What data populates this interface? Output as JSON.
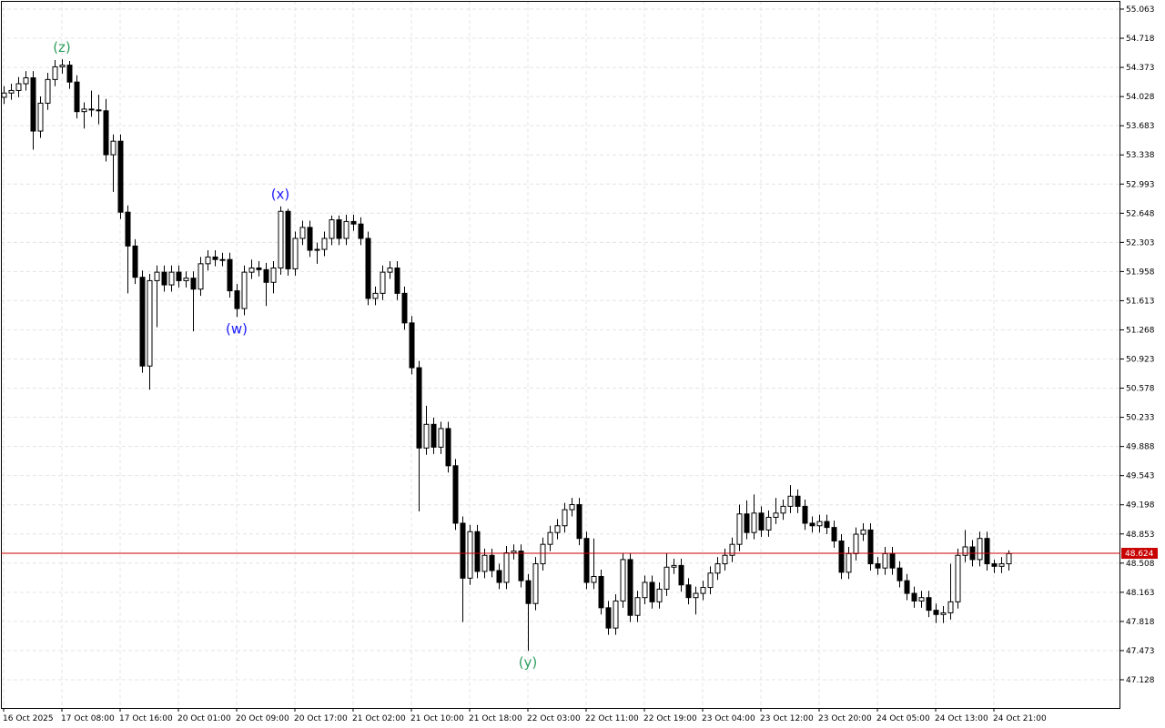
{
  "chart_data": {
    "type": "candlestick",
    "categories": [
      "16 Oct 2025",
      null,
      null,
      null,
      null,
      null,
      null,
      null,
      "17 Oct 08:00",
      null,
      null,
      null,
      null,
      null,
      null,
      null,
      "17 Oct 16:00",
      null,
      null,
      null,
      null,
      null,
      null,
      null,
      "20 Oct 01:00",
      null,
      null,
      null,
      null,
      null,
      null,
      null,
      "20 Oct 09:00",
      null,
      null,
      null,
      null,
      null,
      null,
      null,
      "20 Oct 17:00",
      null,
      null,
      null,
      null,
      null,
      null,
      null,
      "21 Oct 02:00",
      null,
      null,
      null,
      null,
      null,
      null,
      null,
      "21 Oct 10:00",
      null,
      null,
      null,
      null,
      null,
      null,
      null,
      "21 Oct 18:00",
      null,
      null,
      null,
      null,
      null,
      null,
      null,
      "22 Oct 03:00",
      null,
      null,
      null,
      null,
      null,
      null,
      null,
      "22 Oct 11:00",
      null,
      null,
      null,
      null,
      null,
      null,
      null,
      "22 Oct 19:00",
      null,
      null,
      null,
      null,
      null,
      null,
      null,
      "23 Oct 04:00",
      null,
      null,
      null,
      null,
      null,
      null,
      null,
      "23 Oct 12:00",
      null,
      null,
      null,
      null,
      null,
      null,
      null,
      "23 Oct 20:00",
      null,
      null,
      null,
      null,
      null,
      null,
      null,
      "24 Oct 05:00",
      null,
      null,
      null,
      null,
      null,
      null,
      null,
      "24 Oct 13:00",
      null,
      null,
      null,
      null,
      null,
      null,
      null,
      "24 Oct 21:00",
      null,
      null
    ],
    "open": [
      54.02,
      54.07,
      54.1,
      54.18,
      54.25,
      53.62,
      53.95,
      54.23,
      54.38,
      54.4,
      54.2,
      53.85,
      53.88,
      53.87,
      53.86,
      53.34,
      53.5,
      52.66,
      52.26,
      51.89,
      50.84,
      51.85,
      51.95,
      51.8,
      51.95,
      51.85,
      51.88,
      51.75,
      52.05,
      52.13,
      52.1,
      52.1,
      51.73,
      51.52,
      51.95,
      52.0,
      51.98,
      51.83,
      52.0,
      52.67,
      51.99,
      52.35,
      52.48,
      52.21,
      52.22,
      52.35,
      52.57,
      52.35,
      52.55,
      52.52,
      52.35,
      51.64,
      51.7,
      51.95,
      52.0,
      51.7,
      51.35,
      50.82,
      49.87,
      50.15,
      49.88,
      50.1,
      49.66,
      48.98,
      48.33,
      48.88,
      48.41,
      48.6,
      48.42,
      48.28,
      48.63,
      48.65,
      48.3,
      48.03,
      48.5,
      48.73,
      48.87,
      48.95,
      49.14,
      49.2,
      48.8,
      48.28,
      48.35,
      47.98,
      47.74,
      48.06,
      48.55,
      47.89,
      48.1,
      48.28,
      48.05,
      48.2,
      48.46,
      48.48,
      48.25,
      48.1,
      48.15,
      48.22,
      48.39,
      48.5,
      48.6,
      48.73,
      49.09,
      48.87,
      49.1,
      48.9,
      49.05,
      49.1,
      49.18,
      49.3,
      49.18,
      48.98,
      48.95,
      49.0,
      48.93,
      48.77,
      48.4,
      48.62,
      48.85,
      48.9,
      48.5,
      48.45,
      48.62,
      48.45,
      48.3,
      48.15,
      48.06,
      48.1,
      47.95,
      47.9,
      47.92,
      48.05,
      48.6,
      48.7,
      48.55,
      48.8,
      48.5,
      48.47,
      48.5
    ],
    "high": [
      54.15,
      54.18,
      54.26,
      54.33,
      54.33,
      54.03,
      54.31,
      54.46,
      54.47,
      54.45,
      54.28,
      53.96,
      54.1,
      54.05,
      54.0,
      53.58,
      53.58,
      52.74,
      52.34,
      51.97,
      51.93,
      52.03,
      52.03,
      52.03,
      52.03,
      51.96,
      51.96,
      52.13,
      52.21,
      52.21,
      52.18,
      52.18,
      51.81,
      52.03,
      52.1,
      52.08,
      52.06,
      52.08,
      52.73,
      52.7,
      52.43,
      52.56,
      52.56,
      52.3,
      52.43,
      52.62,
      52.62,
      52.63,
      52.63,
      52.6,
      52.43,
      51.78,
      52.03,
      52.08,
      52.08,
      51.78,
      51.43,
      50.9,
      50.37,
      50.23,
      50.18,
      50.18,
      49.74,
      49.06,
      48.96,
      48.96,
      48.68,
      48.68,
      48.5,
      48.71,
      48.73,
      48.73,
      48.38,
      48.58,
      48.81,
      48.95,
      49.03,
      49.22,
      49.28,
      49.28,
      48.88,
      48.8,
      48.43,
      48.06,
      48.14,
      48.63,
      48.63,
      48.18,
      48.36,
      48.36,
      48.28,
      48.62,
      48.56,
      48.56,
      48.33,
      48.23,
      48.3,
      48.47,
      48.58,
      48.68,
      48.81,
      49.2,
      49.25,
      49.32,
      49.18,
      49.13,
      49.28,
      49.26,
      49.43,
      49.38,
      49.26,
      49.06,
      49.08,
      49.08,
      49.01,
      48.85,
      48.7,
      48.93,
      48.98,
      48.98,
      48.58,
      48.7,
      48.7,
      48.53,
      48.38,
      48.23,
      48.18,
      48.18,
      48.03,
      48.0,
      48.5,
      48.68,
      48.9,
      48.78,
      48.88,
      48.88,
      48.55,
      48.58,
      48.66
    ],
    "low": [
      53.94,
      53.99,
      54.02,
      54.1,
      53.4,
      53.54,
      53.87,
      54.15,
      54.3,
      54.12,
      53.77,
      53.65,
      53.79,
      53.7,
      53.26,
      52.9,
      52.58,
      51.7,
      51.81,
      50.76,
      50.56,
      51.3,
      51.72,
      51.72,
      51.77,
      51.77,
      51.25,
      51.67,
      51.97,
      52.02,
      52.02,
      51.65,
      51.42,
      51.44,
      51.87,
      51.9,
      51.55,
      51.7,
      51.92,
      51.91,
      51.91,
      52.27,
      52.13,
      52.05,
      52.14,
      52.27,
      52.27,
      52.27,
      52.44,
      52.27,
      51.56,
      51.56,
      51.62,
      51.87,
      51.62,
      51.27,
      50.74,
      49.12,
      49.79,
      49.8,
      49.8,
      49.58,
      48.9,
      47.81,
      48.25,
      48.33,
      48.33,
      48.34,
      48.2,
      48.2,
      48.55,
      48.22,
      47.47,
      47.95,
      48.42,
      48.65,
      48.79,
      48.87,
      49.06,
      48.72,
      48.2,
      48.2,
      47.9,
      47.66,
      47.66,
      47.98,
      47.81,
      47.81,
      48.02,
      47.97,
      47.97,
      48.12,
      48.38,
      48.17,
      48.02,
      47.9,
      48.07,
      48.14,
      48.31,
      48.42,
      48.52,
      48.65,
      48.79,
      48.79,
      48.82,
      48.82,
      48.97,
      49.02,
      49.1,
      49.1,
      48.9,
      48.87,
      48.87,
      48.85,
      48.69,
      48.32,
      48.32,
      48.54,
      48.77,
      48.42,
      48.37,
      48.37,
      48.37,
      48.22,
      48.07,
      47.98,
      47.98,
      47.87,
      47.8,
      47.8,
      47.84,
      47.97,
      48.52,
      48.47,
      48.47,
      48.42,
      48.39,
      48.39,
      48.42
    ],
    "close": [
      54.07,
      54.1,
      54.18,
      54.25,
      53.62,
      53.95,
      54.23,
      54.38,
      54.4,
      54.2,
      53.85,
      53.88,
      53.87,
      53.86,
      53.34,
      53.5,
      52.66,
      52.26,
      51.89,
      50.84,
      51.85,
      51.95,
      51.8,
      51.95,
      51.85,
      51.88,
      51.75,
      52.05,
      52.13,
      52.1,
      52.1,
      51.73,
      51.52,
      51.95,
      52.0,
      51.98,
      51.83,
      52.0,
      52.67,
      51.99,
      52.35,
      52.48,
      52.21,
      52.22,
      52.35,
      52.57,
      52.35,
      52.55,
      52.52,
      52.35,
      51.64,
      51.7,
      51.95,
      52.0,
      51.7,
      51.35,
      50.82,
      49.87,
      50.15,
      49.88,
      50.1,
      49.66,
      48.98,
      48.33,
      48.88,
      48.41,
      48.6,
      48.42,
      48.28,
      48.63,
      48.65,
      48.3,
      48.03,
      48.5,
      48.73,
      48.87,
      48.95,
      49.14,
      49.2,
      48.8,
      48.28,
      48.35,
      47.98,
      47.74,
      48.06,
      48.55,
      47.89,
      48.1,
      48.28,
      48.05,
      48.2,
      48.46,
      48.48,
      48.25,
      48.1,
      48.15,
      48.22,
      48.39,
      48.5,
      48.6,
      48.73,
      49.09,
      48.87,
      49.1,
      48.9,
      49.05,
      49.1,
      49.18,
      49.3,
      49.18,
      48.98,
      48.95,
      49.0,
      48.93,
      48.77,
      48.4,
      48.62,
      48.85,
      48.9,
      48.5,
      48.45,
      48.62,
      48.45,
      48.3,
      48.15,
      48.06,
      48.1,
      47.95,
      47.9,
      47.92,
      48.05,
      48.6,
      48.7,
      48.55,
      48.8,
      48.5,
      48.47,
      48.5,
      48.62
    ],
    "up_color": "#ffffff",
    "down_color": "#000000",
    "wick_color": "#000000",
    "current_price": 48.624,
    "current_price_color": "#c80000",
    "annotations": [
      {
        "text": "(z)",
        "candle": 8,
        "color": "#2e9e5e",
        "side": "above"
      },
      {
        "text": "(x)",
        "candle": 38,
        "color": "#1a1aff",
        "side": "above"
      },
      {
        "text": "(w)",
        "candle": 32,
        "color": "#1a1aff",
        "side": "below"
      },
      {
        "text": "(y)",
        "candle": 72,
        "color": "#2e9e5e",
        "side": "below"
      }
    ],
    "ylim": [
      46.794,
      55.16
    ],
    "yticks": [
      55.063,
      54.718,
      54.373,
      54.028,
      53.683,
      53.338,
      52.993,
      52.648,
      52.303,
      51.958,
      51.613,
      51.268,
      50.923,
      50.578,
      50.233,
      49.888,
      49.543,
      49.198,
      48.853,
      48.508,
      48.163,
      47.818,
      47.473,
      47.128
    ],
    "grid": true
  }
}
